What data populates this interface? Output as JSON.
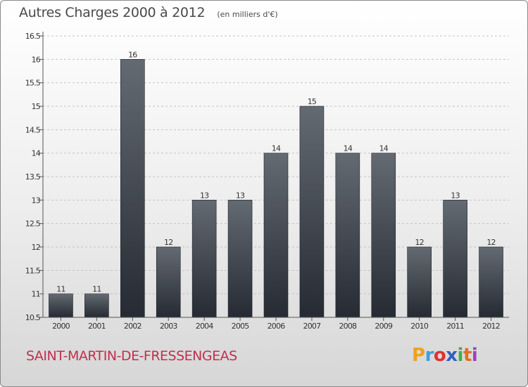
{
  "header": {
    "title": "Autres Charges 2000 à 2012",
    "subtitle": "(en milliers d'€)"
  },
  "footer": {
    "commune": "SAINT-MARTIN-DE-FRESSENGEAS",
    "logo": {
      "letters": [
        "P",
        "r",
        "o",
        "x",
        "i",
        "t",
        "i"
      ],
      "colors": [
        "#f0a020",
        "#3aa0e0",
        "#e03030",
        "#3060c0",
        "#40b040",
        "#e07020",
        "#a040c0"
      ]
    }
  },
  "chart_data": {
    "type": "bar",
    "title": "Autres Charges 2000 à 2012",
    "xlabel": "",
    "ylabel": "",
    "categories": [
      "2000",
      "2001",
      "2002",
      "2003",
      "2004",
      "2005",
      "2006",
      "2007",
      "2008",
      "2009",
      "2010",
      "2011",
      "2012"
    ],
    "values": [
      11,
      11,
      16,
      12,
      13,
      13,
      14,
      15,
      14,
      14,
      12,
      13,
      12
    ],
    "data_labels": [
      "11",
      "11",
      "16",
      "12",
      "13",
      "13",
      "14",
      "15",
      "14",
      "14",
      "12",
      "13",
      "12"
    ],
    "ylim": [
      10.5,
      16.5
    ],
    "yticks": [
      10.5,
      11,
      11.5,
      12,
      12.5,
      13,
      13.5,
      14,
      14.5,
      15,
      15.5,
      16,
      16.5
    ],
    "ytick_labels": [
      "10.5",
      "11",
      "11.5",
      "12",
      "12.5",
      "13",
      "13.5",
      "14",
      "14.5",
      "15",
      "15.5",
      "16",
      "16.5"
    ],
    "grid": true,
    "bar_color": "#3a4048"
  }
}
